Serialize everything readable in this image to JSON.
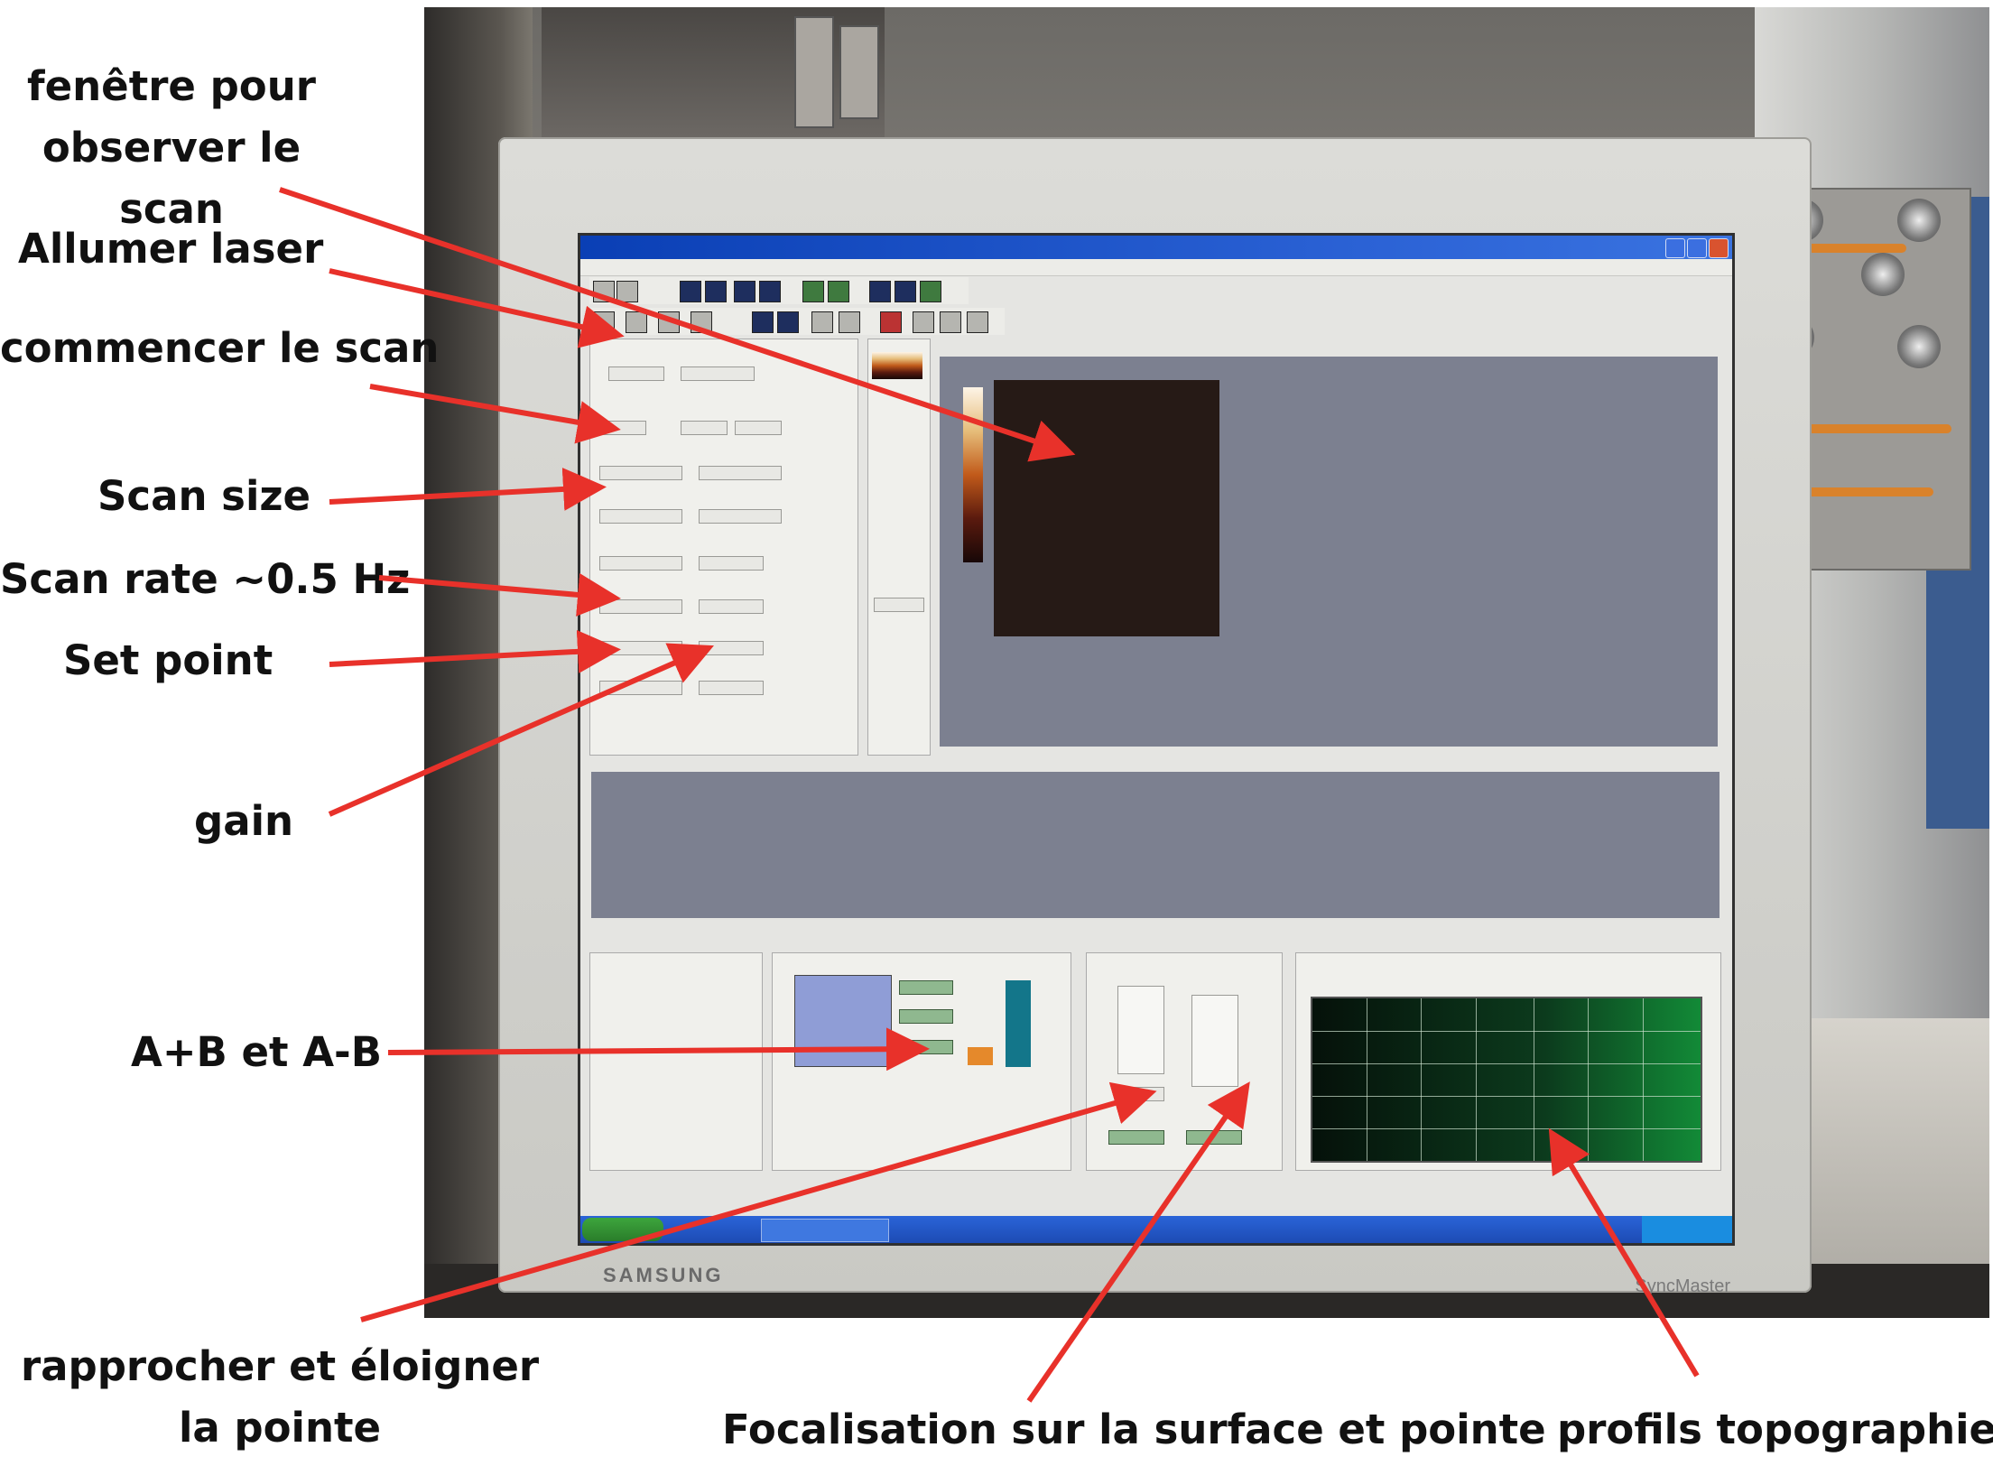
{
  "annotations": {
    "scan_window": "fenêtre pour\nobserver le scan",
    "laser_on": "Allumer laser",
    "start_scan": "commencer le scan",
    "scan_size": "Scan size",
    "scan_rate": "Scan rate ~0.5 Hz",
    "set_point": "Set point",
    "gain": "gain",
    "ab_signals": "A+B et A-B",
    "approach_tip": "rapprocher et éloigner\nla pointe",
    "focus": "Focalisation sur la surface et pointe",
    "topo_profiles": "profils topographie"
  },
  "monitor": {
    "brand": "SAMSUNG",
    "model": "SyncMaster"
  },
  "colors": {
    "arrow": "#e8312a",
    "label_text": "#111111",
    "scan_image": "#261a16",
    "topography_grid": "#128a37"
  }
}
